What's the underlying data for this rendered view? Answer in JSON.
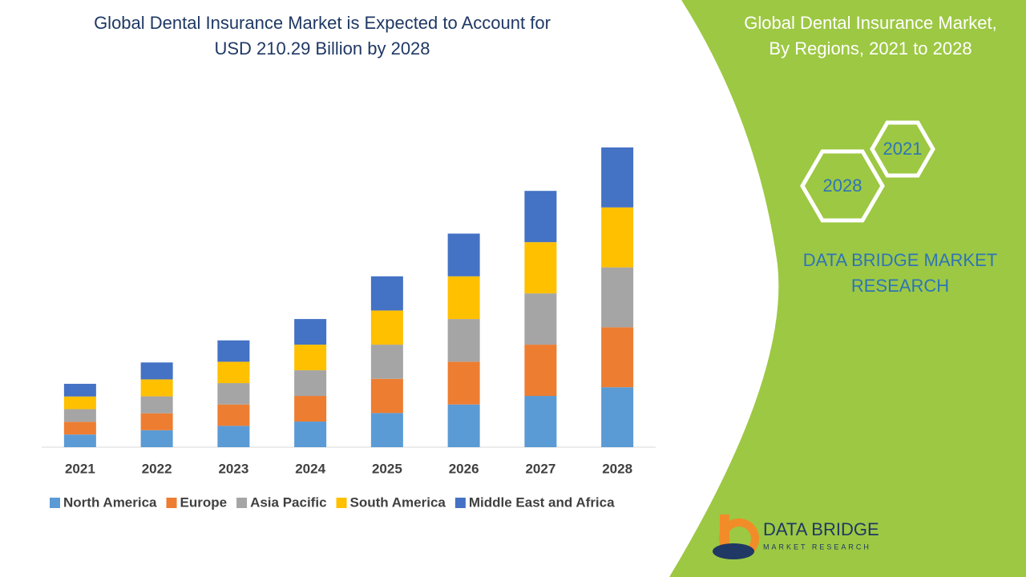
{
  "chart_data": {
    "type": "stacked-bar",
    "title": [
      "Global Dental Insurance Market is Expected to Account for",
      "USD 210.29 Billion by 2028"
    ],
    "categories": [
      "2021",
      "2022",
      "2023",
      "2024",
      "2025",
      "2026",
      "2027",
      "2028"
    ],
    "series": [
      {
        "name": "North America",
        "color": "#5b9bd5",
        "values": [
          8.9,
          11.9,
          15.0,
          18.0,
          24.0,
          30.0,
          36.0,
          42.1
        ]
      },
      {
        "name": "Europe",
        "color": "#ed7d31",
        "values": [
          8.9,
          11.9,
          15.0,
          18.0,
          24.0,
          30.0,
          36.0,
          42.1
        ]
      },
      {
        "name": "Asia Pacific",
        "color": "#a5a5a5",
        "values": [
          8.9,
          11.9,
          15.0,
          18.0,
          24.0,
          30.0,
          36.0,
          42.1
        ]
      },
      {
        "name": "South America",
        "color": "#ffc000",
        "values": [
          8.9,
          11.9,
          15.0,
          18.0,
          24.0,
          30.0,
          36.0,
          42.1
        ]
      },
      {
        "name": "Middle East and Africa",
        "color": "#4472c4",
        "values": [
          8.9,
          11.9,
          15.0,
          18.0,
          24.0,
          30.0,
          36.0,
          42.1
        ]
      }
    ]
  },
  "side_panel": {
    "title": [
      "Global Dental Insurance Market,",
      "By Regions, 2021 to 2028"
    ],
    "hex_start": "2021",
    "hex_end": "2028",
    "brand": [
      "DATA BRIDGE MARKET",
      "RESEARCH"
    ]
  },
  "logo": {
    "name": "DATA BRIDGE",
    "tagline": "MARKET RESEARCH"
  }
}
